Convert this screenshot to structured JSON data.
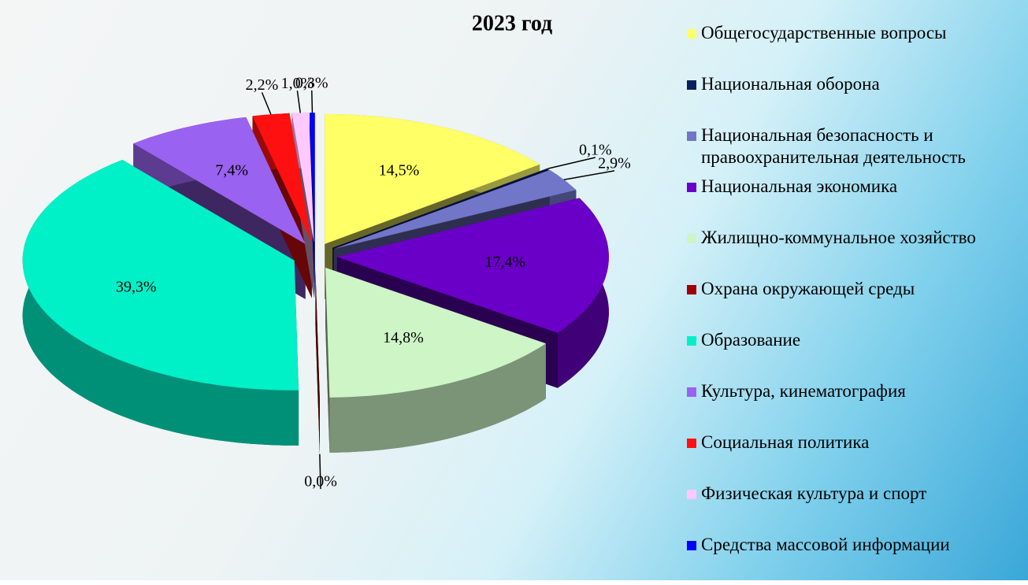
{
  "chart_data": {
    "type": "pie",
    "title": "2023 год",
    "categories": [
      "Общегосударственные вопросы",
      "Национальная оборона",
      "Национальная безопасность и правоохранительная деятельность",
      "Национальная экономика",
      "Жилищно-коммунальное хозяйство",
      "Охрана окружающей среды",
      "Образование",
      "Культура, кинематография",
      "Социальная политика",
      "Физическая культура и спорт",
      "Средства массовой информации"
    ],
    "values": [
      14.5,
      0.1,
      2.9,
      17.4,
      14.8,
      0.0,
      39.3,
      7.4,
      2.2,
      1.0,
      0.3
    ],
    "value_labels": [
      "14,5%",
      "0,1%",
      "2,9%",
      "17,4%",
      "14,8%",
      "0,0%",
      "39,3%",
      "7,4%",
      "2,2%",
      "1,0%",
      "0,3%"
    ],
    "colors": [
      "#ffff66",
      "#0b1f5c",
      "#7276c8",
      "#6a00c8",
      "#cdf5c6",
      "#a00000",
      "#00f0c8",
      "#9a62f0",
      "#ff1010",
      "#ffc8ff",
      "#0000ff"
    ],
    "legend": "right"
  }
}
